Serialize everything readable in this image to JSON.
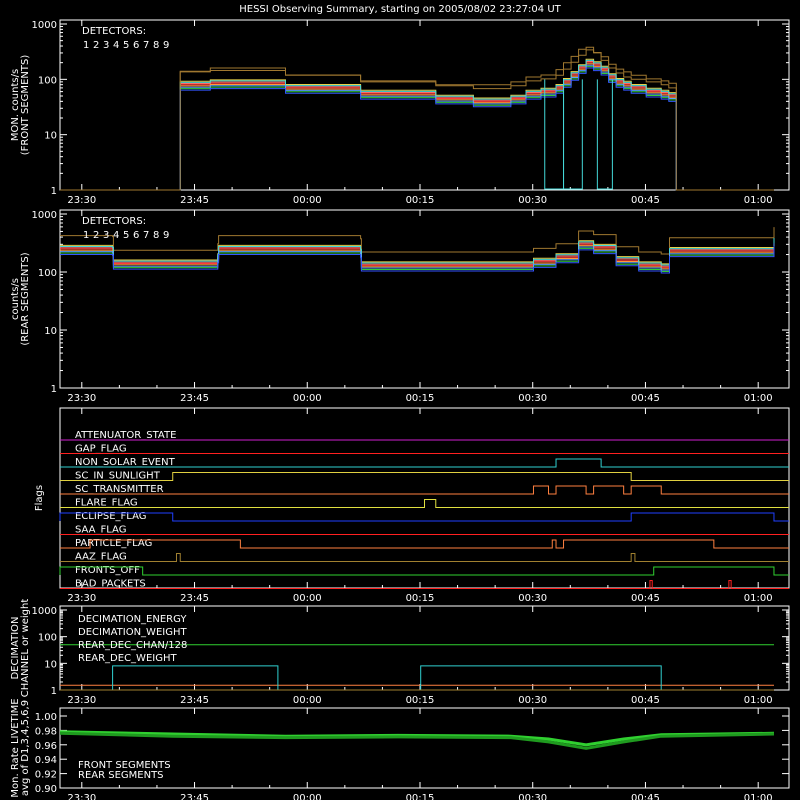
{
  "title": "HESSI Observing Summary, starting on 2005/08/02 23:27:04 UT",
  "time_ticks": [
    "23:30",
    "23:45",
    "00:00",
    "00:15",
    "00:30",
    "00:45",
    "01:00"
  ],
  "colors": {
    "background": "#000000",
    "axes": "#ffffff",
    "detectors": [
      "#ff3b3b",
      "#ff6a6a",
      "#ff9a3a",
      "#e8d24a",
      "#a07830",
      "#33cc33",
      "#44d8d8",
      "#5aa0ff",
      "#3355ff"
    ]
  },
  "chart_data": [
    {
      "type": "line",
      "name": "front",
      "ylabel_lines": [
        "MON. counts/s",
        "(FRONT SEGMENTS)"
      ],
      "yscale": "log",
      "ylim": [
        1,
        1000
      ],
      "yticks": [
        "1",
        "10",
        "100",
        "1000"
      ],
      "legend_title": "DETECTORS:",
      "legend_labels": [
        "1",
        "2",
        "3",
        "4",
        "5",
        "6",
        "7",
        "8",
        "9"
      ],
      "x_minutes_from_23:27": [
        0,
        15,
        16,
        20,
        30,
        40,
        50,
        55,
        60,
        62,
        64,
        66,
        67,
        68,
        69,
        70,
        71,
        72,
        73,
        74,
        75,
        76,
        78,
        80,
        81,
        82,
        95
      ],
      "series_approx": [
        {
          "detector": "1-9 (typical)",
          "values": [
            1,
            1,
            80,
            85,
            70,
            55,
            45,
            40,
            45,
            55,
            60,
            70,
            90,
            120,
            160,
            200,
            180,
            150,
            110,
            90,
            80,
            70,
            60,
            55,
            50,
            1,
            1
          ]
        }
      ],
      "upper_envelope_values": [
        1,
        1,
        140,
        160,
        120,
        90,
        80,
        80,
        90,
        110,
        120,
        150,
        200,
        260,
        350,
        380,
        300,
        220,
        160,
        130,
        110,
        100,
        90,
        80,
        70,
        1,
        1
      ],
      "detector9_dropouts": [
        [
          64.5,
          67
        ],
        [
          67,
          69.5
        ],
        [
          71.5,
          73.5
        ]
      ]
    },
    {
      "type": "line",
      "name": "rear",
      "ylabel_lines": [
        "counts/s",
        "(REAR SEGMENTS)"
      ],
      "yscale": "log",
      "ylim": [
        1,
        1000
      ],
      "yticks": [
        "1",
        "10",
        "100",
        "1000"
      ],
      "legend_title": "DETECTORS:",
      "legend_labels": [
        "1",
        "2",
        "3",
        "4",
        "5",
        "6",
        "7",
        "8",
        "9"
      ],
      "x_minutes_from_23:27": [
        0,
        7,
        7.1,
        21,
        21.1,
        40,
        40.1,
        63,
        66,
        69,
        71,
        74,
        77,
        80,
        81,
        81.1,
        95
      ],
      "values": [
        250,
        240,
        140,
        180,
        250,
        220,
        130,
        150,
        180,
        300,
        260,
        160,
        130,
        120,
        120,
        230,
        350
      ]
    },
    {
      "type": "table",
      "name": "flags",
      "ylabel": "Flags",
      "flags": [
        {
          "label": "ATTENUATOR_STATE",
          "color": "#d020d0",
          "on_intervals": []
        },
        {
          "label": "GAP_FLAG",
          "color": "#ff2020",
          "on_intervals": []
        },
        {
          "label": "NON_SOLAR_EVENT",
          "color": "#30d0d0",
          "on_intervals": [
            [
              66,
              72
            ]
          ]
        },
        {
          "label": "SC_IN_SUNLIGHT",
          "color": "#e0d040",
          "on_intervals": [
            [
              15,
              76
            ]
          ]
        },
        {
          "label": "SC_TRANSMITTER",
          "color": "#ff8040",
          "on_intervals": [
            [
              63,
              65
            ],
            [
              66,
              70
            ],
            [
              71,
              75
            ],
            [
              76,
              80
            ]
          ]
        },
        {
          "label": "FLARE_FLAG",
          "color": "#e0e040",
          "on_intervals": [
            [
              48.5,
              50
            ]
          ]
        },
        {
          "label": "ECLIPSE_FLAG",
          "color": "#2040ff",
          "on_intervals": [
            [
              0,
              15
            ],
            [
              76,
              95
            ]
          ]
        },
        {
          "label": "SAA_FLAG",
          "color": "#ff2020",
          "on_intervals": []
        },
        {
          "label": "PARTICLE_FLAG",
          "color": "#ff8040",
          "on_intervals": [
            [
              4,
              24
            ],
            [
              65.5,
              66
            ],
            [
              67,
              87
            ]
          ]
        },
        {
          "label": "AAZ_FLAG",
          "color": "#a08030",
          "on_intervals": [
            [
              15.5,
              16
            ],
            [
              76,
              76.5
            ]
          ]
        },
        {
          "label": "FRONTS_OFF",
          "color": "#30d030",
          "on_intervals": [
            [
              0,
              11
            ],
            [
              79,
              95
            ]
          ]
        },
        {
          "label": "BAD_PACKETS",
          "color": "#ff2020",
          "on_intervals": [
            [
              78.5,
              78.8
            ],
            [
              89,
              89.3
            ]
          ]
        }
      ]
    },
    {
      "type": "line",
      "name": "decimation",
      "ylabel_lines": [
        "DECIMATION",
        "CHANNEL or weight"
      ],
      "yscale": "log",
      "ylim": [
        1,
        1000
      ],
      "yticks": [
        "1",
        "10",
        "100",
        "1000"
      ],
      "series": [
        {
          "name": "DECIMATION_ENERGY",
          "color": "#30d030",
          "x": [
            0,
            95
          ],
          "values": [
            50,
            50
          ]
        },
        {
          "name": "DECIMATION_WEIGHT",
          "color": "#ff8040",
          "x": [
            0,
            95
          ],
          "values": [
            1.5,
            1.5
          ]
        },
        {
          "name": "REAR_DEC_CHAN/128",
          "color": "#30d0d0",
          "x": [
            0,
            7,
            7,
            29,
            29,
            48,
            48,
            80,
            80,
            95
          ],
          "values": [
            1,
            1,
            8,
            8,
            1,
            1,
            8,
            8,
            1,
            1
          ]
        },
        {
          "name": "REAR_DEC_WEIGHT",
          "color": "#a08030",
          "x": [
            0,
            95
          ],
          "values": [
            1,
            1
          ]
        }
      ]
    },
    {
      "type": "line",
      "name": "livetime",
      "ylabel_lines": [
        "Mon. Rate LIVETIME",
        "avg of D1,3,4,5,6,9"
      ],
      "ylim": [
        0.9,
        1.0
      ],
      "yticks": [
        "0.90",
        "0.92",
        "0.94",
        "0.96",
        "0.98",
        "1.00"
      ],
      "series": [
        {
          "name": "FRONT SEGMENTS",
          "color": "#30d030",
          "x": [
            0,
            15,
            30,
            45,
            60,
            65,
            70,
            75,
            80,
            95
          ],
          "values": [
            0.978,
            0.975,
            0.972,
            0.973,
            0.972,
            0.968,
            0.96,
            0.968,
            0.974,
            0.976
          ]
        },
        {
          "name": "REAR SEGMENTS",
          "color": "#1f9a1f",
          "x": [
            0,
            15,
            30,
            45,
            60,
            65,
            70,
            75,
            80,
            95
          ],
          "values": [
            0.976,
            0.972,
            0.97,
            0.971,
            0.97,
            0.964,
            0.955,
            0.964,
            0.972,
            0.975
          ]
        }
      ]
    }
  ]
}
